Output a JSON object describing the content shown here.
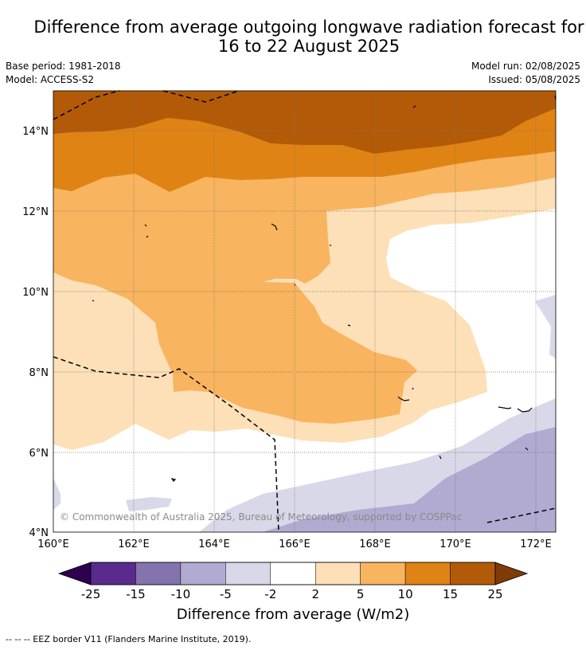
{
  "title_line1": "Difference from average outgoing longwave radiation forecast for",
  "title_line2": "16 to 22 August 2025",
  "base_period": "Base period: 1981-2018",
  "model": "Model: ACCESS-S2",
  "model_run": "Model run: 02/08/2025",
  "issued": "Issued: 05/08/2025",
  "lon_ticks": [
    "160°E",
    "162°E",
    "164°E",
    "166°E",
    "168°E",
    "170°E",
    "172°E"
  ],
  "lat_ticks": [
    "4°N",
    "6°N",
    "8°N",
    "10°N",
    "12°N",
    "14°N"
  ],
  "copyright": "© Commonwealth of Australia 2025, Bureau of Meteorology, supported by COSPPac",
  "colorbar": {
    "ticks": [
      "-25",
      "-15",
      "-10",
      "-5",
      "-2",
      "2",
      "5",
      "10",
      "15",
      "25"
    ],
    "colors": [
      "#5b2a8f",
      "#8474ae",
      "#b1aad1",
      "#d8d8e9",
      "#ffffff",
      "#fde0b7",
      "#f9b45f",
      "#e08315",
      "#b35a08"
    ],
    "under_color": "#2d0050",
    "over_color": "#7f3b08",
    "label": "Difference from average (W/m2)"
  },
  "legend_note": "-- -- -- EEZ border V11 (Flanders Marine Institute, 2019)."
}
